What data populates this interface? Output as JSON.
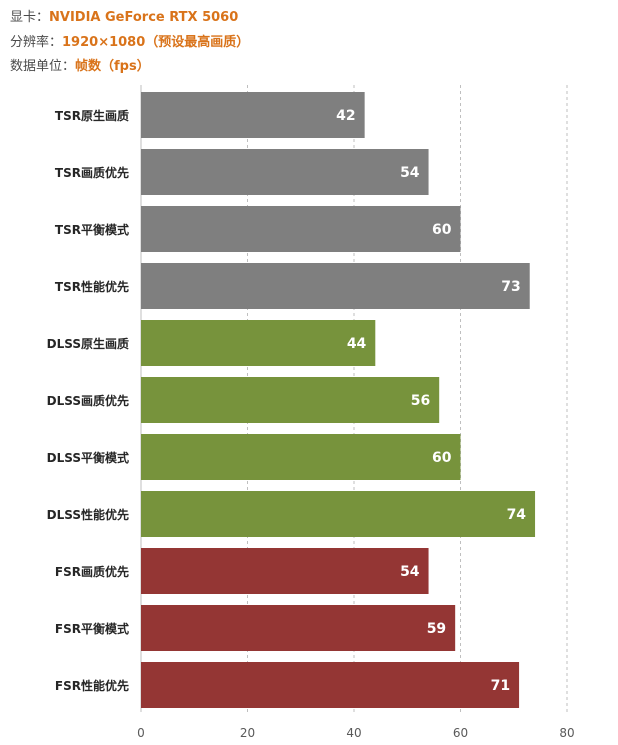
{
  "header": {
    "gpu_label": "显卡：",
    "gpu_value": "NVIDIA GeForce RTX 5060",
    "res_label": "分辨率：",
    "res_value": "1920×1080（预设最高画质）",
    "unit_label": "数据单位：",
    "unit_value": "帧数（fps）"
  },
  "colors": {
    "accent": "#d9731a",
    "tsr": "#7f7f7f",
    "dlss": "#77933c",
    "fsr": "#943634",
    "grid": "#bfbfbf"
  },
  "chart_data": {
    "type": "bar",
    "orientation": "horizontal",
    "categories": [
      "TSR原生画质",
      "TSR画质优先",
      "TSR平衡模式",
      "TSR性能优先",
      "DLSS原生画质",
      "DLSS画质优先",
      "DLSS平衡模式",
      "DLSS性能优先",
      "FSR画质优先",
      "FSR平衡模式",
      "FSR性能优先"
    ],
    "values": [
      42,
      54,
      60,
      73,
      44,
      56,
      60,
      74,
      54,
      59,
      71
    ],
    "groups": [
      "TSR",
      "TSR",
      "TSR",
      "TSR",
      "DLSS",
      "DLSS",
      "DLSS",
      "DLSS",
      "FSR",
      "FSR",
      "FSR"
    ],
    "xlim": [
      0,
      80
    ],
    "xticks": [
      0,
      20,
      40,
      60,
      80
    ],
    "grid": "vertical dashed",
    "data_labels": true,
    "legend": "none"
  }
}
